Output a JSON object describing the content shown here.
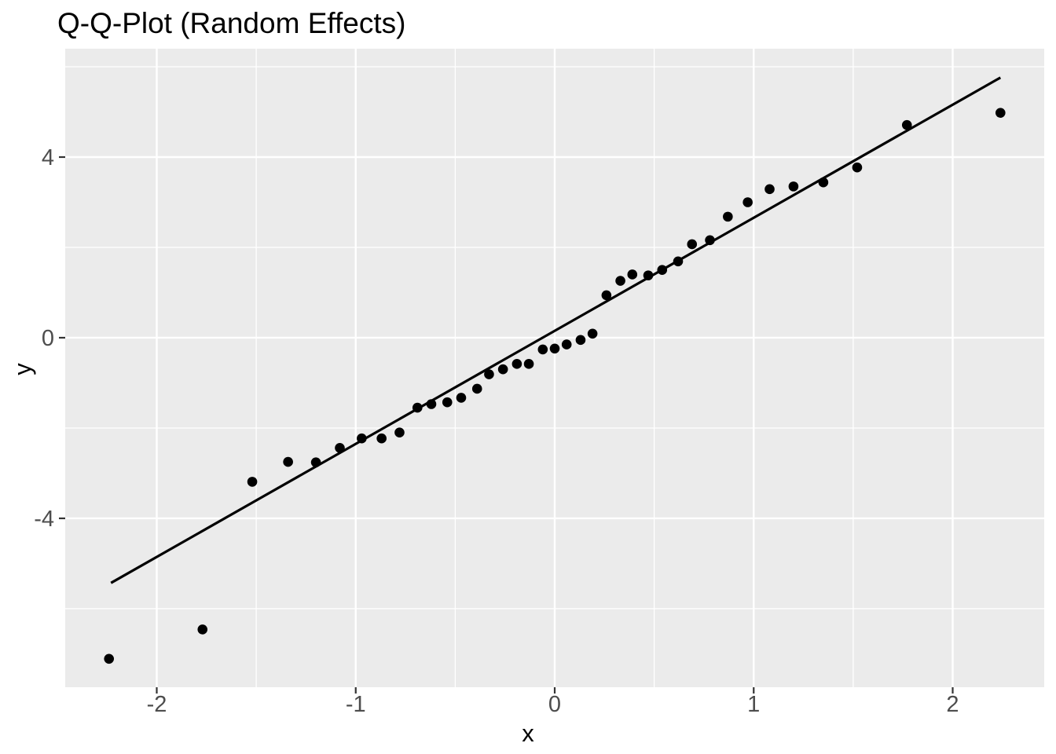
{
  "chart_data": {
    "type": "scatter",
    "title": "Q-Q-Plot (Random Effects)",
    "xlabel": "x",
    "ylabel": "y",
    "xlim": [
      -2.46,
      2.46
    ],
    "ylim": [
      -7.74,
      6.4
    ],
    "grid": true,
    "legend": "none",
    "x_ticks": {
      "values": [
        -2,
        -1,
        0,
        1,
        2
      ],
      "labels": [
        "-2",
        "-1",
        "0",
        "1",
        "2"
      ]
    },
    "y_ticks": {
      "values": [
        -4,
        0,
        4
      ],
      "labels": [
        "-4",
        "0",
        "4"
      ]
    },
    "x_minor": [
      -1.5,
      -0.5,
      0.5,
      1.5
    ],
    "y_minor": [
      -6,
      -2,
      2,
      6
    ],
    "points": [
      [
        -2.24,
        -7.11
      ],
      [
        -1.77,
        -6.46
      ],
      [
        -1.52,
        -3.19
      ],
      [
        -1.34,
        -2.75
      ],
      [
        -1.2,
        -2.76
      ],
      [
        -1.08,
        -2.44
      ],
      [
        -0.97,
        -2.23
      ],
      [
        -0.87,
        -2.23
      ],
      [
        -0.78,
        -2.1
      ],
      [
        -0.69,
        -1.55
      ],
      [
        -0.62,
        -1.47
      ],
      [
        -0.54,
        -1.43
      ],
      [
        -0.47,
        -1.33
      ],
      [
        -0.39,
        -1.13
      ],
      [
        -0.33,
        -0.81
      ],
      [
        -0.26,
        -0.7
      ],
      [
        -0.19,
        -0.58
      ],
      [
        -0.13,
        -0.58
      ],
      [
        -0.06,
        -0.26
      ],
      [
        0.0,
        -0.24
      ],
      [
        0.06,
        -0.15
      ],
      [
        0.13,
        -0.05
      ],
      [
        0.19,
        0.09
      ],
      [
        0.26,
        0.94
      ],
      [
        0.33,
        1.26
      ],
      [
        0.39,
        1.4
      ],
      [
        0.47,
        1.38
      ],
      [
        0.54,
        1.5
      ],
      [
        0.62,
        1.69
      ],
      [
        0.69,
        2.07
      ],
      [
        0.78,
        2.16
      ],
      [
        0.87,
        2.68
      ],
      [
        0.97,
        3.0
      ],
      [
        1.08,
        3.29
      ],
      [
        1.2,
        3.35
      ],
      [
        1.35,
        3.44
      ],
      [
        1.52,
        3.77
      ],
      [
        1.77,
        4.71
      ],
      [
        2.24,
        4.98
      ]
    ],
    "line": {
      "x1": -2.23,
      "y1": -5.43,
      "x2": 2.24,
      "y2": 5.76
    },
    "colors": {
      "panel_bg": "#EBEBEB",
      "grid": "#FFFFFF",
      "point": "#000000",
      "line": "#000000",
      "tick_text": "#4D4D4D",
      "tick_mark": "#333333",
      "title_text": "#000000"
    }
  }
}
